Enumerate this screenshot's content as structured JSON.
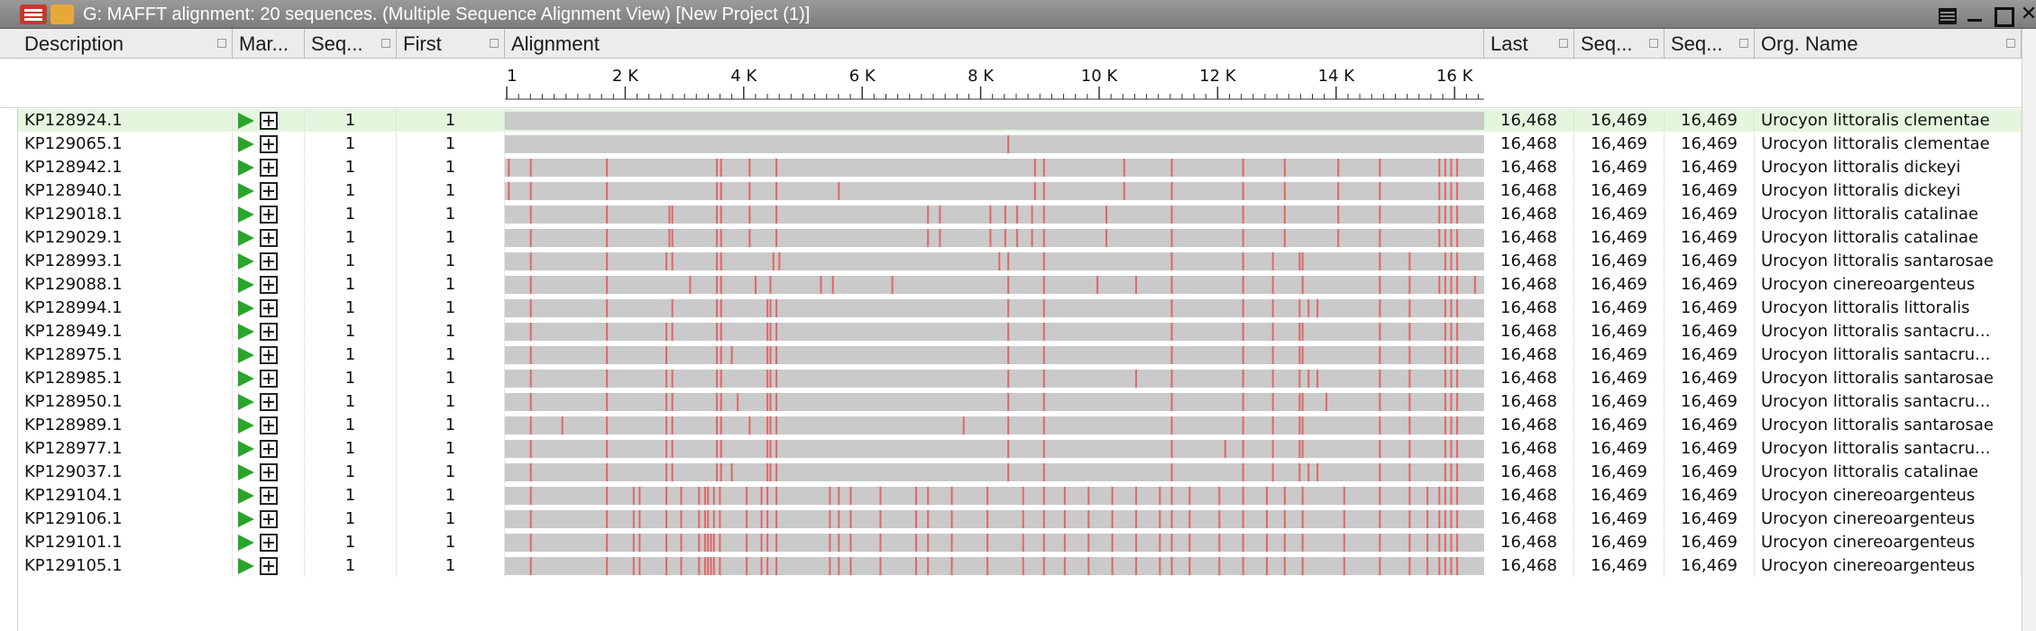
{
  "window": {
    "title": "G: MAFFT alignment: 20 sequences. (Multiple Sequence Alignment View) [New Project (1)]",
    "close_glyph": "✕"
  },
  "columns": [
    {
      "key": "desc",
      "label": "Description"
    },
    {
      "key": "mark",
      "label": "Mar..."
    },
    {
      "key": "seq",
      "label": "Seq..."
    },
    {
      "key": "first",
      "label": "First"
    },
    {
      "key": "align",
      "label": "Alignment"
    },
    {
      "key": "last",
      "label": "Last"
    },
    {
      "key": "sl1",
      "label": "Seq..."
    },
    {
      "key": "sl2",
      "label": "Seq..."
    },
    {
      "key": "org",
      "label": "Org. Name"
    }
  ],
  "ruler": {
    "max": 16469,
    "labels": [
      "1",
      "2 K",
      "4 K",
      "6 K",
      "8 K",
      "10 K",
      "12 K",
      "14 K",
      "16 K"
    ],
    "label_values": [
      1,
      2000,
      4000,
      6000,
      8000,
      10000,
      12000,
      14000,
      16000
    ]
  },
  "colors": {
    "variant": "#e06767",
    "bar": "#cacaca",
    "selected_row": "#e4f6de",
    "play": "#2aa52a"
  },
  "selected_index": 0,
  "rows": [
    {
      "desc": "KP128924.1",
      "seq": "1",
      "first": "1",
      "last": "16,468",
      "sl1": "16,469",
      "sl2": "16,469",
      "org": "Urocyon littoralis clementae",
      "variants": []
    },
    {
      "desc": "KP129065.1",
      "seq": "1",
      "first": "1",
      "last": "16,468",
      "sl1": "16,469",
      "sl2": "16,469",
      "org": "Urocyon littoralis clementae",
      "variants": [
        8450
      ]
    },
    {
      "desc": "KP128942.1",
      "seq": "1",
      "first": "1",
      "last": "16,468",
      "sl1": "16,469",
      "sl2": "16,469",
      "org": "Urocyon littoralis dickeyi",
      "variants": [
        50,
        420,
        1700,
        3550,
        3620,
        4100,
        4550,
        8900,
        9050,
        10400,
        11200,
        12400,
        13100,
        14000,
        14700,
        15700,
        15800,
        15900,
        16000
      ]
    },
    {
      "desc": "KP128940.1",
      "seq": "1",
      "first": "1",
      "last": "16,468",
      "sl1": "16,469",
      "sl2": "16,469",
      "org": "Urocyon littoralis dickeyi",
      "variants": [
        50,
        420,
        1700,
        3550,
        3620,
        4100,
        4550,
        5600,
        8900,
        9050,
        10400,
        11200,
        12400,
        13100,
        14000,
        14700,
        15700,
        15800,
        15900,
        16000
      ]
    },
    {
      "desc": "KP129018.1",
      "seq": "1",
      "first": "1",
      "last": "16,468",
      "sl1": "16,469",
      "sl2": "16,469",
      "org": "Urocyon littoralis catalinae",
      "variants": [
        420,
        1700,
        2750,
        2800,
        3550,
        3620,
        4100,
        4550,
        7100,
        7300,
        8150,
        8400,
        8600,
        8850,
        9050,
        10100,
        11200,
        12400,
        13100,
        14000,
        14700,
        15700,
        15800,
        15900,
        16000
      ]
    },
    {
      "desc": "KP129029.1",
      "seq": "1",
      "first": "1",
      "last": "16,468",
      "sl1": "16,469",
      "sl2": "16,469",
      "org": "Urocyon littoralis catalinae",
      "variants": [
        420,
        1700,
        2750,
        2800,
        3550,
        3620,
        4100,
        4550,
        7100,
        7300,
        8150,
        8400,
        8600,
        8850,
        9050,
        10100,
        11200,
        12400,
        13100,
        14000,
        14700,
        15700,
        15800,
        15900,
        16000
      ]
    },
    {
      "desc": "KP128993.1",
      "seq": "1",
      "first": "1",
      "last": "16,468",
      "sl1": "16,469",
      "sl2": "16,469",
      "org": "Urocyon littoralis santarosae",
      "variants": [
        420,
        1700,
        2700,
        2800,
        3550,
        3620,
        4500,
        4600,
        8300,
        8450,
        9050,
        11200,
        12400,
        12900,
        13350,
        13400,
        14700,
        15200,
        15800,
        15900,
        16000
      ]
    },
    {
      "desc": "KP129088.1",
      "seq": "1",
      "first": "1",
      "last": "16,468",
      "sl1": "16,469",
      "sl2": "16,469",
      "org": "Urocyon cinereoargenteus",
      "variants": [
        420,
        1700,
        3100,
        3550,
        3620,
        4200,
        4450,
        5300,
        5500,
        6500,
        8450,
        9050,
        9950,
        10600,
        11200,
        12400,
        12900,
        13400,
        14700,
        15200,
        15700,
        15800,
        15900,
        16000,
        16300
      ]
    },
    {
      "desc": "KP128994.1",
      "seq": "1",
      "first": "1",
      "last": "16,468",
      "sl1": "16,469",
      "sl2": "16,469",
      "org": "Urocyon littoralis littoralis",
      "variants": [
        420,
        1700,
        2800,
        3550,
        3620,
        4400,
        4450,
        4550,
        8450,
        9050,
        11200,
        12400,
        12900,
        13350,
        13500,
        13650,
        14700,
        15200,
        15800,
        15900,
        16000
      ]
    },
    {
      "desc": "KP128949.1",
      "seq": "1",
      "first": "1",
      "last": "16,468",
      "sl1": "16,469",
      "sl2": "16,469",
      "org": "Urocyon littoralis santacru...",
      "variants": [
        420,
        1700,
        2700,
        2800,
        3550,
        3620,
        4400,
        4450,
        4550,
        8450,
        9050,
        11200,
        12400,
        12900,
        13350,
        13400,
        14700,
        15200,
        15800,
        15900,
        16000
      ]
    },
    {
      "desc": "KP128975.1",
      "seq": "1",
      "first": "1",
      "last": "16,468",
      "sl1": "16,469",
      "sl2": "16,469",
      "org": "Urocyon littoralis santacru...",
      "variants": [
        420,
        1700,
        2700,
        3550,
        3620,
        3800,
        4400,
        4450,
        4550,
        8450,
        9050,
        11200,
        12400,
        12900,
        13350,
        13400,
        14700,
        15200,
        15800,
        15900,
        16000
      ]
    },
    {
      "desc": "KP128985.1",
      "seq": "1",
      "first": "1",
      "last": "16,468",
      "sl1": "16,469",
      "sl2": "16,469",
      "org": "Urocyon littoralis santarosae",
      "variants": [
        420,
        1700,
        2700,
        2800,
        3550,
        3620,
        4400,
        4450,
        4550,
        8450,
        9050,
        10600,
        11200,
        12400,
        12900,
        13350,
        13500,
        13650,
        14700,
        15200,
        15800,
        15900,
        16000
      ]
    },
    {
      "desc": "KP128950.1",
      "seq": "1",
      "first": "1",
      "last": "16,468",
      "sl1": "16,469",
      "sl2": "16,469",
      "org": "Urocyon littoralis santacru...",
      "variants": [
        420,
        1700,
        2700,
        2800,
        3550,
        3620,
        3900,
        4400,
        4450,
        4550,
        8450,
        9050,
        11200,
        12400,
        12900,
        13350,
        13400,
        13800,
        14700,
        15200,
        15800,
        15900,
        16000
      ]
    },
    {
      "desc": "KP128989.1",
      "seq": "1",
      "first": "1",
      "last": "16,468",
      "sl1": "16,469",
      "sl2": "16,469",
      "org": "Urocyon littoralis santarosae",
      "variants": [
        420,
        950,
        1700,
        2700,
        2800,
        3550,
        3620,
        4100,
        4400,
        4450,
        4550,
        7700,
        8450,
        9050,
        11200,
        12400,
        12900,
        13350,
        13400,
        14700,
        15200,
        15800,
        15900,
        16000
      ]
    },
    {
      "desc": "KP128977.1",
      "seq": "1",
      "first": "1",
      "last": "16,468",
      "sl1": "16,469",
      "sl2": "16,469",
      "org": "Urocyon littoralis santacru...",
      "variants": [
        420,
        1700,
        2700,
        2800,
        3550,
        3620,
        4400,
        4450,
        4550,
        8450,
        9050,
        11200,
        12100,
        12400,
        12900,
        13350,
        13400,
        14700,
        15200,
        15800,
        15900,
        16000
      ]
    },
    {
      "desc": "KP129037.1",
      "seq": "1",
      "first": "1",
      "last": "16,468",
      "sl1": "16,469",
      "sl2": "16,469",
      "org": "Urocyon littoralis catalinae",
      "variants": [
        420,
        1700,
        2700,
        2800,
        3550,
        3620,
        3800,
        4400,
        4450,
        4550,
        8450,
        9050,
        11200,
        12400,
        12900,
        13350,
        13500,
        13650,
        14700,
        15200,
        15800,
        15900,
        16000
      ]
    },
    {
      "desc": "KP129104.1",
      "seq": "1",
      "first": "1",
      "last": "16,468",
      "sl1": "16,469",
      "sl2": "16,469",
      "org": "Urocyon cinereoargenteus",
      "variants": [
        420,
        1700,
        2150,
        2250,
        2700,
        2950,
        3250,
        3350,
        3400,
        3500,
        3600,
        4050,
        4300,
        4400,
        4550,
        5450,
        5600,
        5800,
        6300,
        6900,
        7100,
        7500,
        8100,
        8700,
        9050,
        9400,
        9800,
        10200,
        10600,
        11000,
        11200,
        11500,
        12000,
        12400,
        12800,
        13100,
        13400,
        14100,
        14700,
        15200,
        15500,
        15700,
        15800,
        15900,
        16000
      ]
    },
    {
      "desc": "KP129106.1",
      "seq": "1",
      "first": "1",
      "last": "16,468",
      "sl1": "16,469",
      "sl2": "16,469",
      "org": "Urocyon cinereoargenteus",
      "variants": [
        420,
        1700,
        2150,
        2250,
        2700,
        2950,
        3250,
        3350,
        3400,
        3500,
        3600,
        4050,
        4300,
        4400,
        4550,
        5450,
        5600,
        5800,
        6300,
        6900,
        7100,
        7500,
        8100,
        8700,
        9050,
        9400,
        9800,
        10200,
        10600,
        11000,
        11200,
        11500,
        12000,
        12400,
        12800,
        13100,
        13400,
        14100,
        14700,
        15200,
        15500,
        15700,
        15800,
        15900,
        16000
      ]
    },
    {
      "desc": "KP129101.1",
      "seq": "1",
      "first": "1",
      "last": "16,468",
      "sl1": "16,469",
      "sl2": "16,469",
      "org": "Urocyon cinereoargenteus",
      "variants": [
        420,
        1700,
        2150,
        2250,
        2700,
        2950,
        3250,
        3350,
        3400,
        3450,
        3500,
        3600,
        4050,
        4300,
        4400,
        4550,
        5450,
        5600,
        5800,
        6300,
        6900,
        7100,
        7500,
        8100,
        8700,
        9050,
        9400,
        9800,
        10200,
        10600,
        11000,
        11200,
        11500,
        12000,
        12400,
        12800,
        13100,
        13400,
        14100,
        14700,
        15200,
        15500,
        15700,
        15800,
        15900,
        16000
      ]
    },
    {
      "desc": "KP129105.1",
      "seq": "1",
      "first": "1",
      "last": "16,468",
      "sl1": "16,469",
      "sl2": "16,469",
      "org": "Urocyon cinereoargenteus",
      "variants": [
        420,
        1700,
        2150,
        2250,
        2700,
        2950,
        3250,
        3350,
        3400,
        3450,
        3500,
        3600,
        4050,
        4300,
        4400,
        4550,
        5450,
        5600,
        5800,
        6300,
        6900,
        7100,
        7500,
        8100,
        8700,
        9050,
        9400,
        9800,
        10200,
        10600,
        11000,
        11200,
        11500,
        12000,
        12400,
        12800,
        13100,
        13400,
        14100,
        14700,
        15200,
        15500,
        15700,
        15800,
        15900,
        16000
      ]
    }
  ]
}
